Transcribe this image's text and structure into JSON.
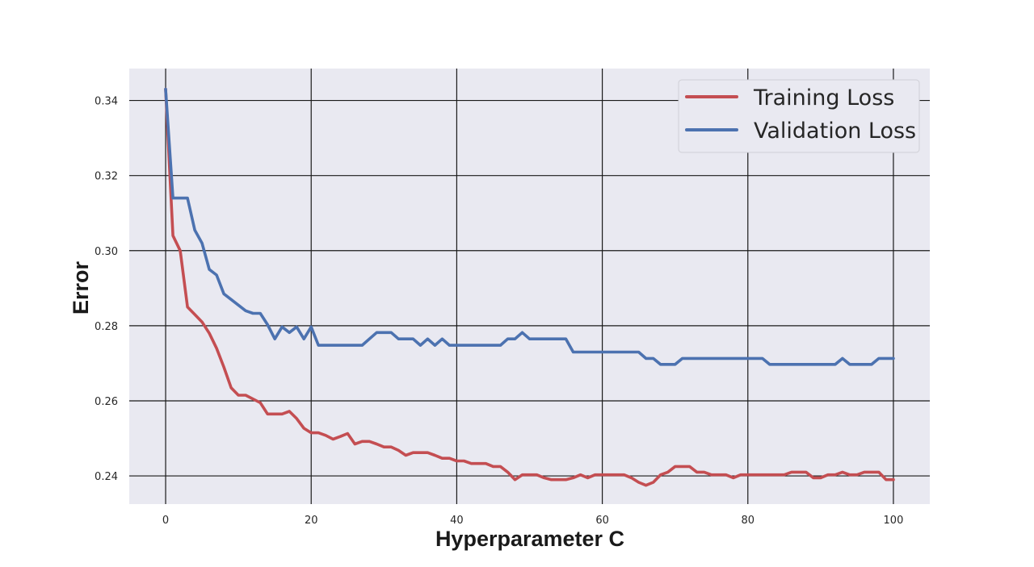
{
  "chart_data": {
    "type": "line",
    "title": "",
    "xlabel": "Hyperparameter C",
    "ylabel": "Error",
    "xlim": [
      -5,
      105
    ],
    "ylim": [
      0.2325,
      0.3485
    ],
    "xticks": [
      0,
      20,
      40,
      60,
      80,
      100
    ],
    "yticks": [
      0.24,
      0.26,
      0.28,
      0.3,
      0.32,
      0.34
    ],
    "xtick_labels": [
      "0",
      "20",
      "40",
      "60",
      "80",
      "100"
    ],
    "ytick_labels": [
      "0.24",
      "0.26",
      "0.28",
      "0.30",
      "0.32",
      "0.34"
    ],
    "grid": true,
    "legend_position": "top-right",
    "colors": {
      "background": "#e9e9f1",
      "grid": "#1a1a1a",
      "training": "#c44e52",
      "validation": "#4c72b0"
    },
    "x": [
      0,
      1,
      2,
      3,
      4,
      5,
      6,
      7,
      8,
      9,
      10,
      11,
      12,
      13,
      14,
      15,
      16,
      17,
      18,
      19,
      20,
      21,
      22,
      23,
      24,
      25,
      26,
      27,
      28,
      29,
      30,
      31,
      32,
      33,
      34,
      35,
      36,
      37,
      38,
      39,
      40,
      41,
      42,
      43,
      44,
      45,
      46,
      47,
      48,
      49,
      50,
      51,
      52,
      53,
      54,
      55,
      56,
      57,
      58,
      59,
      60,
      61,
      62,
      63,
      64,
      65,
      66,
      67,
      68,
      69,
      70,
      71,
      72,
      73,
      74,
      75,
      76,
      77,
      78,
      79,
      80,
      81,
      82,
      83,
      84,
      85,
      86,
      87,
      88,
      89,
      90,
      91,
      92,
      93,
      94,
      95,
      96,
      97,
      98,
      99,
      100
    ],
    "series": [
      {
        "name": "Training Loss",
        "values": [
          0.343,
          0.304,
          0.3,
          0.285,
          0.283,
          0.281,
          0.278,
          0.274,
          0.269,
          0.2635,
          0.2615,
          0.2615,
          0.2605,
          0.2595,
          0.2565,
          0.2565,
          0.2565,
          0.2572,
          0.2553,
          0.2527,
          0.2515,
          0.2515,
          0.2508,
          0.2498,
          0.2505,
          0.2513,
          0.2485,
          0.2492,
          0.2492,
          0.2485,
          0.2477,
          0.2477,
          0.2468,
          0.2455,
          0.2462,
          0.2462,
          0.2462,
          0.2455,
          0.2447,
          0.2447,
          0.244,
          0.244,
          0.2433,
          0.2433,
          0.2433,
          0.2425,
          0.2425,
          0.241,
          0.239,
          0.2403,
          0.2403,
          0.2403,
          0.2395,
          0.239,
          0.239,
          0.239,
          0.2395,
          0.2403,
          0.2395,
          0.2403,
          0.2403,
          0.2403,
          0.2403,
          0.2403,
          0.2395,
          0.2383,
          0.2375,
          0.2383,
          0.2403,
          0.241,
          0.2425,
          0.2425,
          0.2425,
          0.241,
          0.241,
          0.2403,
          0.2403,
          0.2403,
          0.2395,
          0.2403,
          0.2403,
          0.2403,
          0.2403,
          0.2403,
          0.2403,
          0.2403,
          0.241,
          0.241,
          0.241,
          0.2395,
          0.2395,
          0.2403,
          0.2403,
          0.241,
          0.2403,
          0.2403,
          0.241,
          0.241,
          0.241,
          0.239,
          0.239
        ]
      },
      {
        "name": "Validation Loss",
        "values": [
          0.343,
          0.314,
          0.314,
          0.314,
          0.3055,
          0.302,
          0.295,
          0.2935,
          0.2885,
          0.287,
          0.2855,
          0.284,
          0.2833,
          0.2833,
          0.2803,
          0.2765,
          0.2797,
          0.2782,
          0.2797,
          0.2765,
          0.2797,
          0.2748,
          0.2748,
          0.2748,
          0.2748,
          0.2748,
          0.2748,
          0.2748,
          0.2765,
          0.2782,
          0.2782,
          0.2782,
          0.2765,
          0.2765,
          0.2765,
          0.2748,
          0.2765,
          0.2748,
          0.2765,
          0.2748,
          0.2748,
          0.2748,
          0.2748,
          0.2748,
          0.2748,
          0.2748,
          0.2748,
          0.2765,
          0.2765,
          0.2782,
          0.2765,
          0.2765,
          0.2765,
          0.2765,
          0.2765,
          0.2765,
          0.273,
          0.273,
          0.273,
          0.273,
          0.273,
          0.273,
          0.273,
          0.273,
          0.273,
          0.273,
          0.2713,
          0.2713,
          0.2697,
          0.2697,
          0.2697,
          0.2713,
          0.2713,
          0.2713,
          0.2713,
          0.2713,
          0.2713,
          0.2713,
          0.2713,
          0.2713,
          0.2713,
          0.2713,
          0.2713,
          0.2697,
          0.2697,
          0.2697,
          0.2697,
          0.2697,
          0.2697,
          0.2697,
          0.2697,
          0.2697,
          0.2697,
          0.2713,
          0.2697,
          0.2697,
          0.2697,
          0.2697,
          0.2713,
          0.2713,
          0.2713
        ]
      }
    ]
  }
}
